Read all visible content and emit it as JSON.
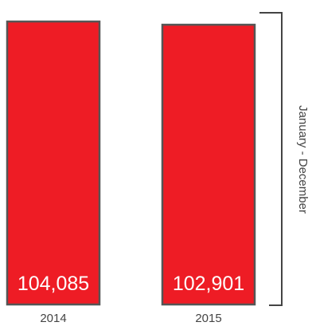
{
  "chart_data": {
    "type": "bar",
    "categories": [
      "2014",
      "2015"
    ],
    "values": [
      104085,
      102901
    ],
    "value_labels": [
      "104,085",
      "102,901"
    ],
    "title": "",
    "xlabel": "",
    "ylabel": "",
    "bracket_label": "January - December",
    "bar_color": "#ee1c25",
    "grid": false,
    "legend": "none"
  }
}
